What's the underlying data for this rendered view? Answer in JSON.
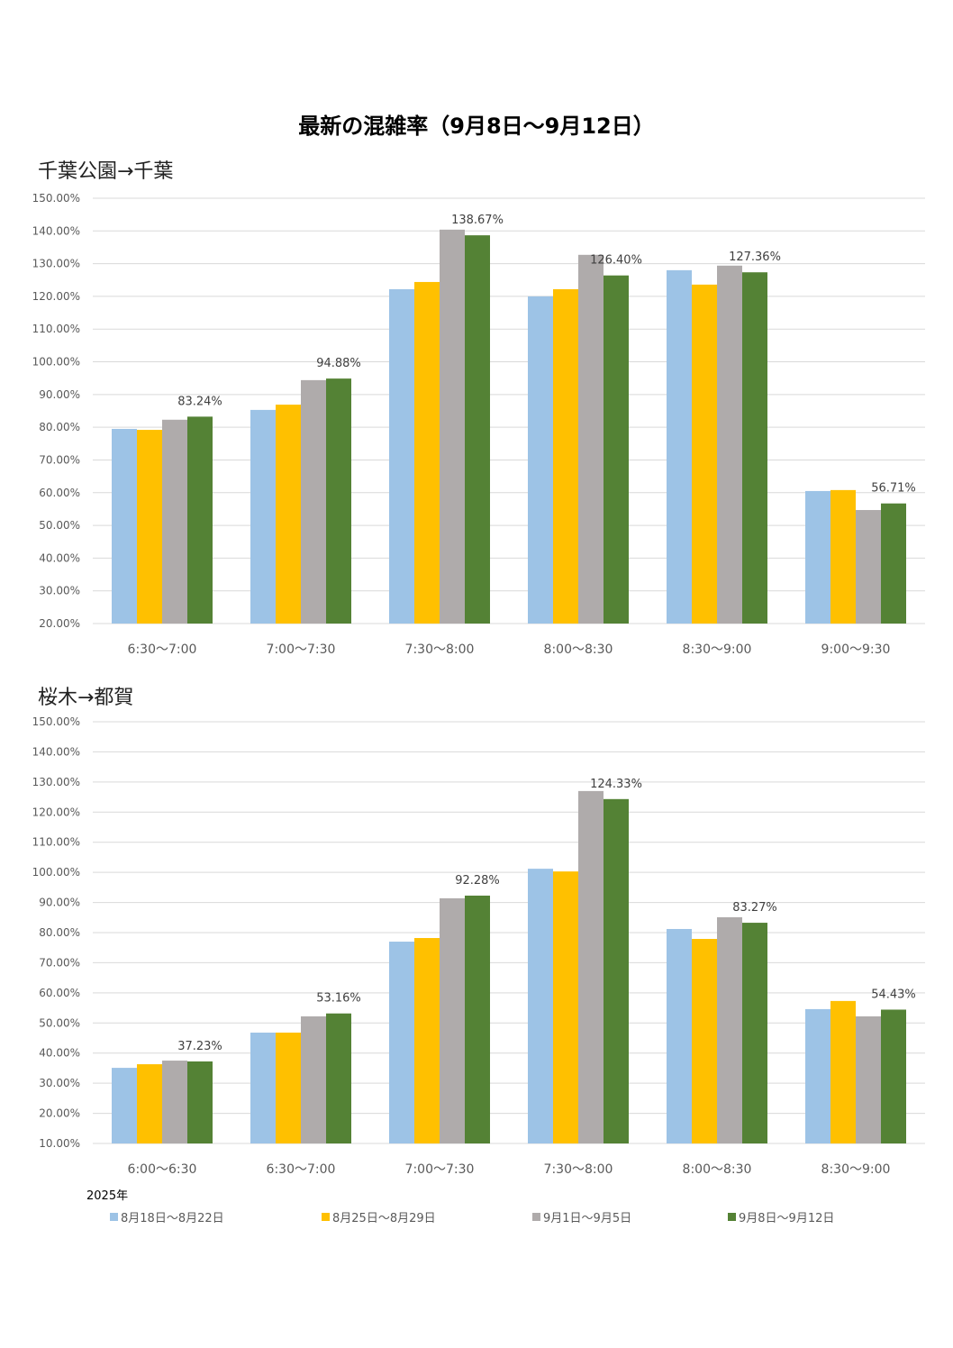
{
  "page_title": "最新の混雑率（9月8日～9月12日）",
  "year_label": "2025年",
  "colors": [
    "#9DC3E6",
    "#FFC000",
    "#AFABAB",
    "#548235"
  ],
  "chart_data": [
    {
      "type": "bar",
      "title": "千葉公園→千葉",
      "ylim": [
        20,
        150
      ],
      "yticks": [
        "20.00%",
        "30.00%",
        "40.00%",
        "50.00%",
        "60.00%",
        "70.00%",
        "80.00%",
        "90.00%",
        "100.00%",
        "110.00%",
        "120.00%",
        "130.00%",
        "140.00%",
        "150.00%"
      ],
      "categories": [
        "6:30～7:00",
        "7:00～7:30",
        "7:30～8:00",
        "8:00～8:30",
        "8:30～9:00",
        "9:00～9:30"
      ],
      "series": [
        {
          "name": "8月18日～8月22日",
          "values": [
            79.5,
            85.3,
            122.2,
            120.0,
            128.0,
            60.5
          ]
        },
        {
          "name": "8月25日～8月29日",
          "values": [
            79.2,
            86.9,
            124.4,
            122.2,
            123.6,
            60.8
          ]
        },
        {
          "name": "9月1日～9月5日",
          "values": [
            82.3,
            94.4,
            140.4,
            132.7,
            129.4,
            54.7
          ]
        },
        {
          "name": "9月8日～9月12日",
          "values": [
            83.24,
            94.88,
            138.67,
            126.4,
            127.36,
            56.71
          ]
        }
      ],
      "data_labels": [
        "83.24%",
        "94.88%",
        "138.67%",
        "126.40%",
        "127.36%",
        "56.71%"
      ]
    },
    {
      "type": "bar",
      "title": "桜木→都賀",
      "ylim": [
        10,
        150
      ],
      "yticks": [
        "10.00%",
        "20.00%",
        "30.00%",
        "40.00%",
        "50.00%",
        "60.00%",
        "70.00%",
        "80.00%",
        "90.00%",
        "100.00%",
        "110.00%",
        "120.00%",
        "130.00%",
        "140.00%",
        "150.00%"
      ],
      "categories": [
        "6:00～6:30",
        "6:30～7:00",
        "7:00～7:30",
        "7:30～8:00",
        "8:00～8:30",
        "8:30～9:00"
      ],
      "series": [
        {
          "name": "8月18日～8月22日",
          "values": [
            35.1,
            46.8,
            77.0,
            101.2,
            81.2,
            54.6
          ]
        },
        {
          "name": "8月25日～8月29日",
          "values": [
            36.3,
            46.8,
            78.2,
            100.3,
            77.9,
            57.3
          ]
        },
        {
          "name": "9月1日～9月5日",
          "values": [
            37.5,
            52.2,
            91.4,
            127.0,
            85.1,
            52.2
          ]
        },
        {
          "name": "9月8日～9月12日",
          "values": [
            37.23,
            53.16,
            92.28,
            124.33,
            83.27,
            54.43
          ]
        }
      ],
      "data_labels": [
        "37.23%",
        "53.16%",
        "92.28%",
        "124.33%",
        "83.27%",
        "54.43%"
      ]
    }
  ]
}
